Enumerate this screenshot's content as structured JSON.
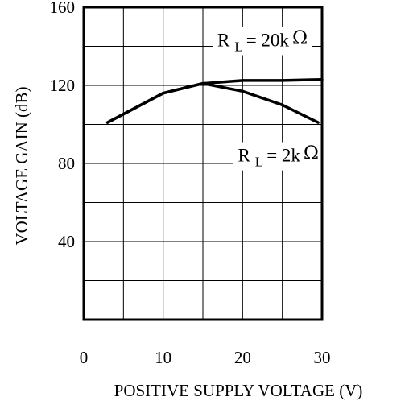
{
  "chart_data": {
    "type": "line",
    "title": "",
    "xlabel": "POSITIVE SUPPLY VOLTAGE (V)",
    "ylabel": "VOLTAGE GAIN (dB)",
    "xlim": [
      0,
      30
    ],
    "ylim": [
      0,
      160
    ],
    "xticks": [
      0,
      10,
      20,
      30
    ],
    "yticks": [
      40,
      80,
      120,
      160
    ],
    "x_grid_step": 5,
    "y_grid_step": 20,
    "grid": true,
    "series": [
      {
        "name": "R L = 20k Ω",
        "points": [
          [
            3,
            101
          ],
          [
            10,
            116
          ],
          [
            15,
            121
          ],
          [
            20,
            122.5
          ],
          [
            25,
            122.5
          ],
          [
            30,
            123
          ]
        ]
      },
      {
        "name": "R L = 2k Ω",
        "points": [
          [
            3,
            101
          ],
          [
            10,
            116
          ],
          [
            15,
            121
          ],
          [
            20,
            117
          ],
          [
            25,
            110
          ],
          [
            29.5,
            101
          ]
        ]
      }
    ],
    "annotations": [
      {
        "series": 0,
        "prefix": "R",
        "sub": "L",
        "text": "= 20k",
        "symbol": "Ω",
        "x": 22.5,
        "y": 140
      },
      {
        "series": 1,
        "prefix": "R",
        "sub": "L",
        "text": "= 2k",
        "symbol": "Ω",
        "x": 24.5,
        "y": 81
      }
    ]
  }
}
